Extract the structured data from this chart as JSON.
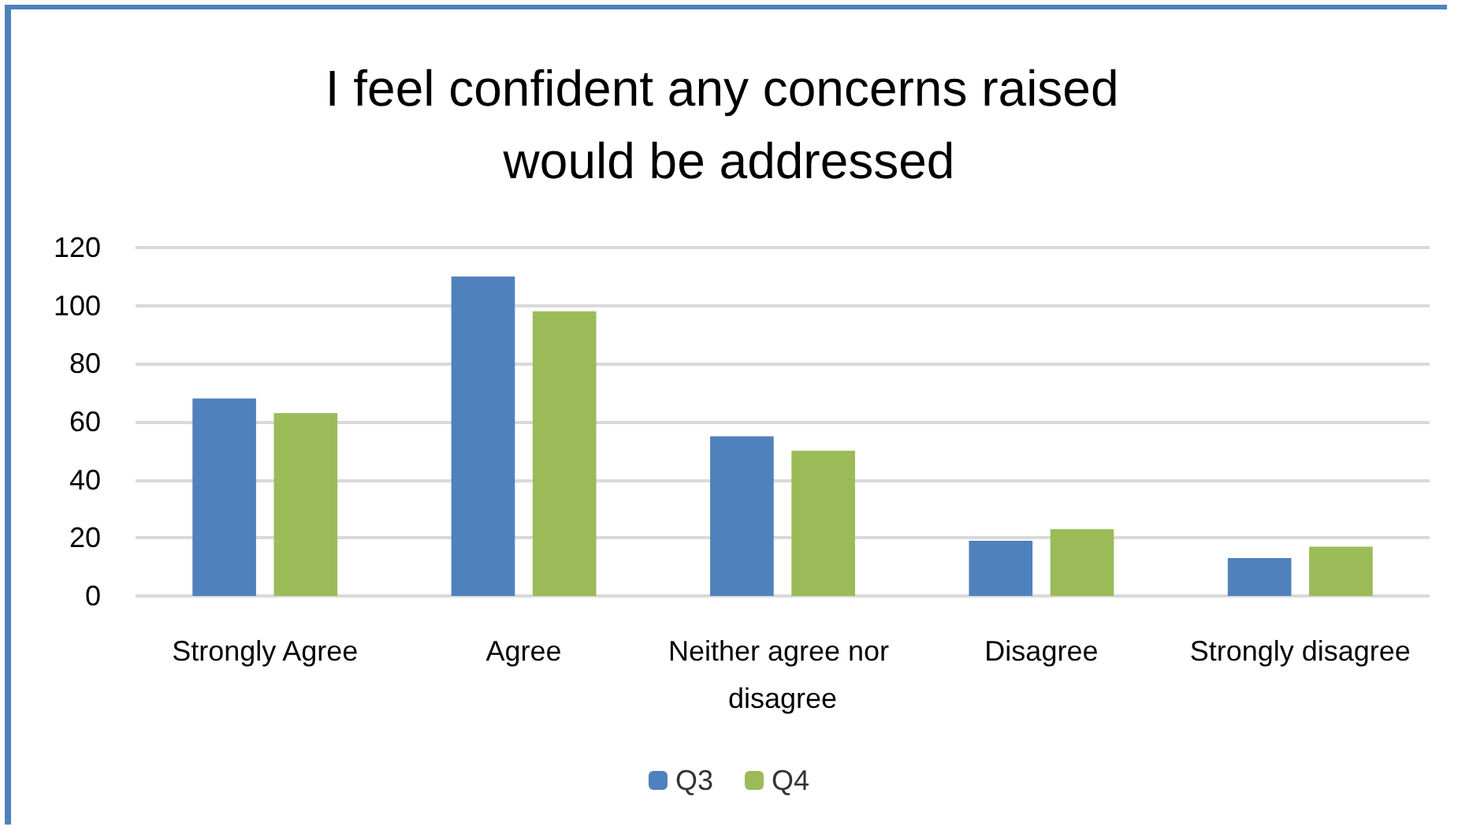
{
  "chart_data": {
    "type": "bar",
    "title": "I feel confident any concerns raised would be addressed",
    "categories": [
      "Strongly Agree",
      "Agree",
      "Neither agree nor disagree",
      "Disagree",
      "Strongly disagree"
    ],
    "series": [
      {
        "name": "Q3",
        "color": "#4f81bd",
        "values": [
          68,
          110,
          55,
          19,
          13
        ]
      },
      {
        "name": "Q4",
        "color": "#9bbb59",
        "values": [
          63,
          98,
          50,
          23,
          17
        ]
      }
    ],
    "ylim": [
      0,
      120
    ],
    "yticks": [
      0,
      20,
      40,
      60,
      80,
      100,
      120
    ],
    "grid": "y",
    "legend": "bottom"
  }
}
